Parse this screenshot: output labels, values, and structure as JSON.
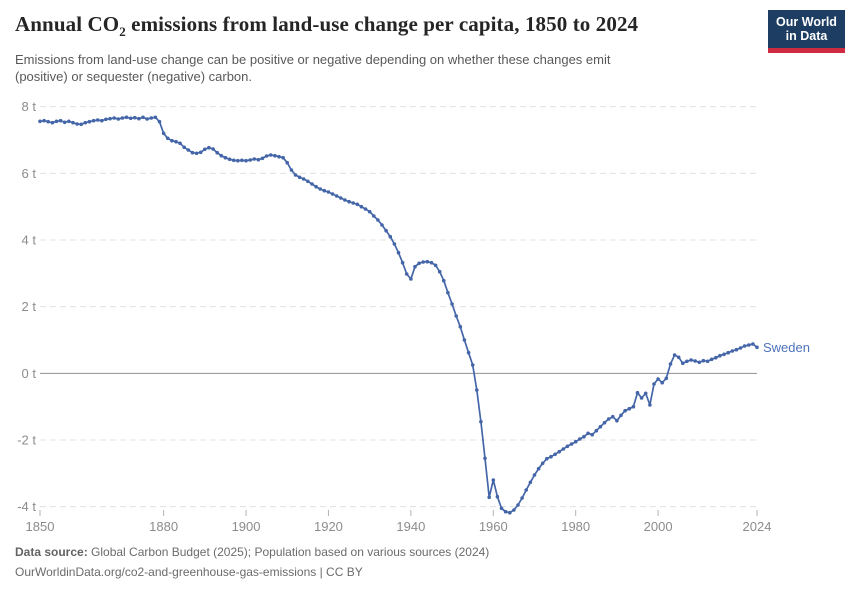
{
  "header": {
    "title_pre": "Annual CO",
    "title_sub": "2",
    "title_post": " emissions from land-use change per capita, 1850 to 2024",
    "subtitle": "Emissions from land-use change can be positive or negative depending on whether these changes emit (positive) or sequester (negative) carbon.",
    "logo": {
      "line1": "Our World",
      "line2": "in Data",
      "bg_color": "#1d3d63",
      "accent_color": "#cf2b40"
    }
  },
  "chart_data": {
    "type": "line",
    "title": "Annual CO2 emissions from land-use change per capita, 1850 to 2024",
    "entity": "Sweden",
    "unit": "t",
    "x_range": [
      1850,
      2024
    ],
    "x_step": 1,
    "values": [
      7.56,
      7.58,
      7.55,
      7.52,
      7.56,
      7.58,
      7.53,
      7.56,
      7.52,
      7.48,
      7.47,
      7.52,
      7.55,
      7.58,
      7.6,
      7.58,
      7.62,
      7.64,
      7.66,
      7.63,
      7.66,
      7.68,
      7.65,
      7.67,
      7.64,
      7.68,
      7.63,
      7.66,
      7.68,
      7.55,
      7.2,
      7.05,
      6.98,
      6.95,
      6.9,
      6.78,
      6.7,
      6.62,
      6.6,
      6.63,
      6.72,
      6.77,
      6.73,
      6.62,
      6.53,
      6.47,
      6.42,
      6.39,
      6.38,
      6.39,
      6.38,
      6.4,
      6.43,
      6.41,
      6.45,
      6.52,
      6.55,
      6.53,
      6.5,
      6.47,
      6.32,
      6.1,
      5.95,
      5.88,
      5.83,
      5.76,
      5.68,
      5.6,
      5.53,
      5.48,
      5.44,
      5.38,
      5.32,
      5.26,
      5.2,
      5.15,
      5.11,
      5.07,
      5.0,
      4.93,
      4.85,
      4.72,
      4.6,
      4.45,
      4.28,
      4.1,
      3.88,
      3.62,
      3.32,
      2.98,
      2.83,
      3.2,
      3.3,
      3.34,
      3.35,
      3.32,
      3.24,
      3.05,
      2.78,
      2.42,
      2.08,
      1.72,
      1.4,
      1.0,
      0.62,
      0.25,
      -0.5,
      -1.45,
      -2.55,
      -3.72,
      -3.2,
      -3.7,
      -4.05,
      -4.15,
      -4.18,
      -4.1,
      -3.95,
      -3.74,
      -3.5,
      -3.27,
      -3.05,
      -2.86,
      -2.7,
      -2.56,
      -2.5,
      -2.43,
      -2.35,
      -2.27,
      -2.19,
      -2.12,
      -2.05,
      -1.97,
      -1.9,
      -1.8,
      -1.84,
      -1.72,
      -1.6,
      -1.48,
      -1.37,
      -1.3,
      -1.42,
      -1.26,
      -1.12,
      -1.06,
      -1.0,
      -0.58,
      -0.74,
      -0.6,
      -0.95,
      -0.32,
      -0.17,
      -0.28,
      -0.15,
      0.28,
      0.55,
      0.48,
      0.3,
      0.36,
      0.4,
      0.37,
      0.33,
      0.38,
      0.36,
      0.42,
      0.47,
      0.53,
      0.57,
      0.62,
      0.67,
      0.71,
      0.76,
      0.82,
      0.85,
      0.88,
      0.78
    ],
    "ylim": [
      -4.25,
      8.2
    ],
    "yticks": [
      {
        "v": 8,
        "label": "8 t"
      },
      {
        "v": 6,
        "label": "6 t"
      },
      {
        "v": 4,
        "label": "4 t"
      },
      {
        "v": 2,
        "label": "2 t"
      },
      {
        "v": 0,
        "label": "0 t"
      },
      {
        "v": -2,
        "label": "-2 t"
      },
      {
        "v": -4,
        "label": "-4 t"
      }
    ],
    "xticks": [
      "1850",
      "1880",
      "1900",
      "1920",
      "1940",
      "1960",
      "1980",
      "2000",
      "2024"
    ],
    "grid": true,
    "legend_position": "end-of-line",
    "colors": {
      "line": "#4466a8",
      "series_label": "#4e73bd",
      "grid": "#e0e0e0",
      "zero_line": "#8f8f8f",
      "tick_label": "#8c8c8c"
    }
  },
  "footer": {
    "source_label": "Data source:",
    "source_text": " Global Carbon Budget (2025); Population based on various sources (2024)",
    "note_link": "OurWorldinData.org/co2-and-greenhouse-gas-emissions",
    "note_rest": " | CC BY"
  }
}
